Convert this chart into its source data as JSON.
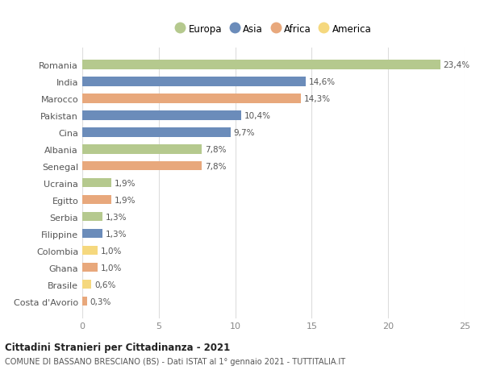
{
  "countries": [
    "Romania",
    "India",
    "Marocco",
    "Pakistan",
    "Cina",
    "Albania",
    "Senegal",
    "Ucraina",
    "Egitto",
    "Serbia",
    "Filippine",
    "Colombia",
    "Ghana",
    "Brasile",
    "Costa d'Avorio"
  ],
  "values": [
    23.4,
    14.6,
    14.3,
    10.4,
    9.7,
    7.8,
    7.8,
    1.9,
    1.9,
    1.3,
    1.3,
    1.0,
    1.0,
    0.6,
    0.3
  ],
  "labels": [
    "23,4%",
    "14,6%",
    "14,3%",
    "10,4%",
    "9,7%",
    "7,8%",
    "7,8%",
    "1,9%",
    "1,9%",
    "1,3%",
    "1,3%",
    "1,0%",
    "1,0%",
    "0,6%",
    "0,3%"
  ],
  "continents": [
    "Europa",
    "Asia",
    "Africa",
    "Asia",
    "Asia",
    "Europa",
    "Africa",
    "Europa",
    "Africa",
    "Europa",
    "Asia",
    "America",
    "Africa",
    "America",
    "Africa"
  ],
  "colors": {
    "Europa": "#b5c98e",
    "Asia": "#6b8cba",
    "Africa": "#e8a87c",
    "America": "#f5d87e"
  },
  "legend_order": [
    "Europa",
    "Asia",
    "Africa",
    "America"
  ],
  "title": "Cittadini Stranieri per Cittadinanza - 2021",
  "subtitle": "COMUNE DI BASSANO BRESCIANO (BS) - Dati ISTAT al 1° gennaio 2021 - TUTTITALIA.IT",
  "xlim": [
    0,
    25
  ],
  "xticks": [
    0,
    5,
    10,
    15,
    20,
    25
  ],
  "bg_color": "#ffffff",
  "grid_color": "#dddddd",
  "bar_height": 0.55
}
